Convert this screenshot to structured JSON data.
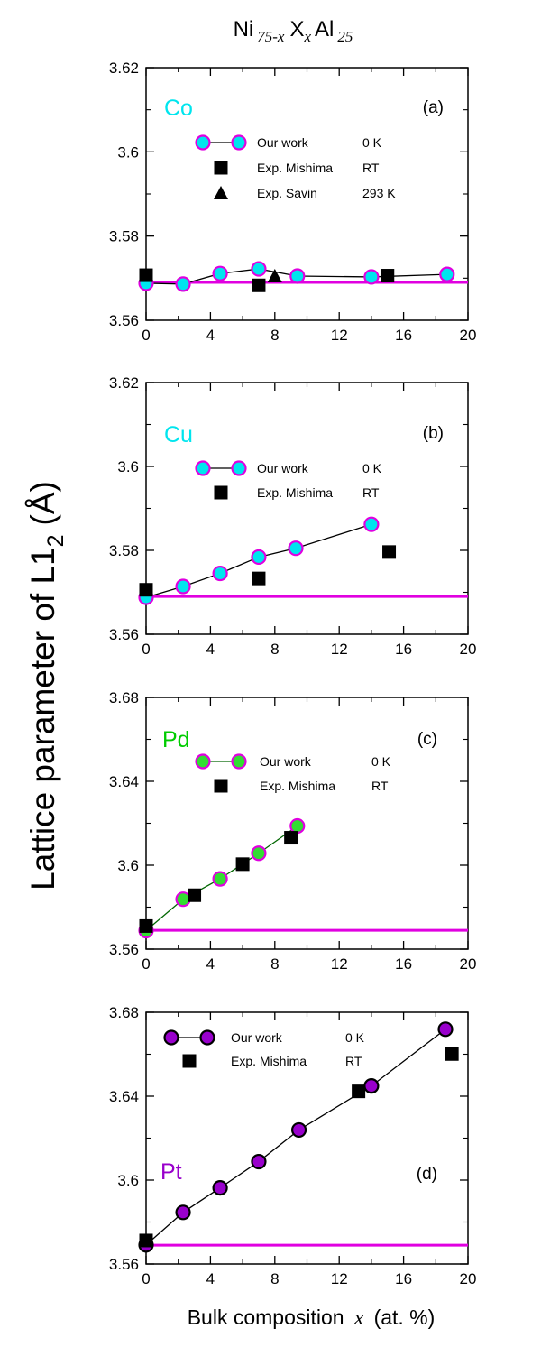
{
  "figure_title": {
    "prefix": "Ni",
    "sub1": "75-x",
    "mid": "X",
    "sub2": "x",
    "el": "Al",
    "sub3": "25"
  },
  "y_axis_label": {
    "text": "Lattice parameter of L1",
    "subscript": "2",
    "unit": "(Å)"
  },
  "x_axis_label": {
    "prefix": "Bulk composition",
    "var": "x",
    "unit": "(at. %)"
  },
  "chart_data": [
    {
      "type": "line",
      "panel": "(a)",
      "element": "Co",
      "element_color": "#00e5ee",
      "xlim": [
        0,
        20
      ],
      "ylim": [
        3.56,
        3.62
      ],
      "xticks": [
        "0",
        "4",
        "8",
        "12",
        "16",
        "20"
      ],
      "yticks": [
        "3.56",
        "3.58",
        "3.6",
        "3.62"
      ],
      "reference_line": {
        "y": 3.569,
        "color": "#e000e0"
      },
      "series": [
        {
          "name": "Our work",
          "condition": "0 K",
          "marker": "circle",
          "fill": "#00e5ee",
          "edge": "#e000e0",
          "line": "#000000",
          "x": [
            0,
            2.3,
            4.6,
            7.0,
            9.4,
            14.0,
            18.7
          ],
          "y": [
            3.5688,
            3.5686,
            3.5711,
            3.5722,
            3.5705,
            3.5703,
            3.5709
          ]
        },
        {
          "name": "Exp. Mishima",
          "condition": "RT",
          "marker": "square",
          "fill": "#000000",
          "x": [
            0,
            7.0,
            15.0
          ],
          "y": [
            3.5707,
            3.5683,
            3.5706
          ]
        },
        {
          "name": "Exp. Savin",
          "condition": "293 K",
          "marker": "triangle",
          "fill": "#000000",
          "x": [
            8.0
          ],
          "y": [
            3.5705
          ]
        }
      ]
    },
    {
      "type": "line",
      "panel": "(b)",
      "element": "Cu",
      "element_color": "#00e5ee",
      "xlim": [
        0,
        20
      ],
      "ylim": [
        3.56,
        3.62
      ],
      "xticks": [
        "0",
        "4",
        "8",
        "12",
        "16",
        "20"
      ],
      "yticks": [
        "3.56",
        "3.58",
        "3.6",
        "3.62"
      ],
      "reference_line": {
        "y": 3.569,
        "color": "#e000e0"
      },
      "series": [
        {
          "name": "Our work",
          "condition": "0 K",
          "marker": "circle",
          "fill": "#00e5ee",
          "edge": "#e000e0",
          "line": "#000000",
          "x": [
            0,
            2.3,
            4.6,
            7.0,
            9.3,
            14.0
          ],
          "y": [
            3.5688,
            3.5714,
            3.5745,
            3.5784,
            3.5805,
            3.5862
          ]
        },
        {
          "name": "Exp. Mishima",
          "condition": "RT",
          "marker": "square",
          "fill": "#000000",
          "x": [
            0,
            7.0,
            15.1
          ],
          "y": [
            3.5706,
            3.5733,
            3.5796
          ]
        }
      ]
    },
    {
      "type": "line",
      "panel": "(c)",
      "element": "Pd",
      "element_color": "#00cc00",
      "xlim": [
        0,
        20
      ],
      "ylim": [
        3.56,
        3.68
      ],
      "xticks": [
        "0",
        "4",
        "8",
        "12",
        "16",
        "20"
      ],
      "yticks": [
        "3.56",
        "3.6",
        "3.64",
        "3.68"
      ],
      "reference_line": {
        "y": 3.569,
        "color": "#e000e0"
      },
      "series": [
        {
          "name": "Our work",
          "condition": "0 K",
          "marker": "circle",
          "fill": "#33dd33",
          "edge": "#e000e0",
          "line": "#006600",
          "x": [
            0,
            2.3,
            4.6,
            7.0,
            9.4
          ],
          "y": [
            3.5688,
            3.5838,
            3.5935,
            3.6057,
            3.6187
          ]
        },
        {
          "name": "Exp. Mishima",
          "condition": "RT",
          "marker": "square",
          "fill": "#000000",
          "x": [
            0,
            3.0,
            6.0,
            9.0
          ],
          "y": [
            3.571,
            3.5857,
            3.6005,
            3.6131
          ]
        }
      ]
    },
    {
      "type": "line",
      "panel": "(d)",
      "element": "Pt",
      "element_color": "#9900cc",
      "xlim": [
        0,
        20
      ],
      "ylim": [
        3.56,
        3.68
      ],
      "xticks": [
        "0",
        "4",
        "8",
        "12",
        "16",
        "20"
      ],
      "yticks": [
        "3.56",
        "3.6",
        "3.64",
        "3.68"
      ],
      "reference_line": {
        "y": 3.569,
        "color": "#e000e0"
      },
      "series": [
        {
          "name": "Our work",
          "condition": "0 K",
          "marker": "circle",
          "fill": "#9900cc",
          "edge": "#000000",
          "line": "#000000",
          "x": [
            0,
            2.3,
            4.6,
            7.0,
            9.5,
            14.0,
            18.6
          ],
          "y": [
            3.5691,
            3.5846,
            3.5963,
            3.6088,
            3.6239,
            3.6449,
            3.6719
          ]
        },
        {
          "name": "Exp. Mishima",
          "condition": "RT",
          "marker": "square",
          "fill": "#000000",
          "x": [
            0,
            13.2,
            19.0
          ],
          "y": [
            3.5712,
            3.6423,
            3.6601
          ]
        }
      ]
    }
  ]
}
